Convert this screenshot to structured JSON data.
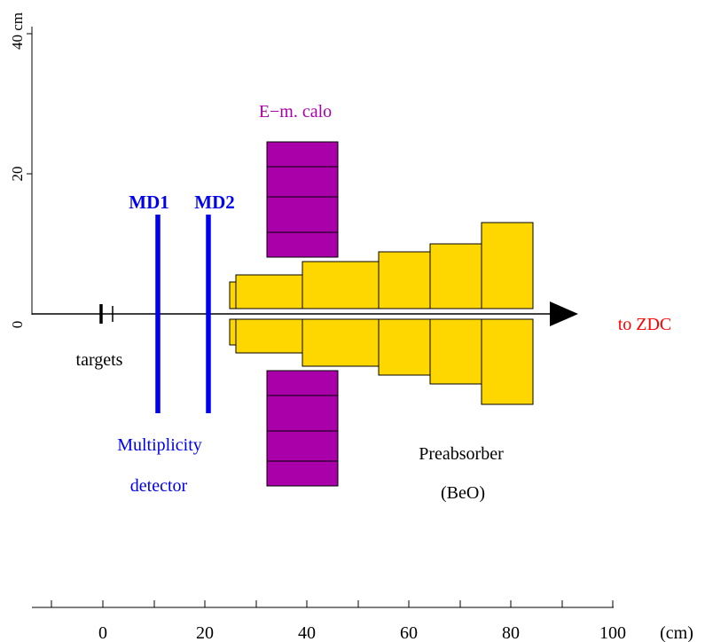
{
  "y_axis": {
    "unit_label": "40 cm",
    "tick_labels": [
      "20",
      "0"
    ]
  },
  "x_axis": {
    "tick_labels": [
      "0",
      "20",
      "40",
      "60",
      "80",
      "100"
    ],
    "unit_label": "(cm)"
  },
  "labels": {
    "targets": "targets",
    "md1": "MD1",
    "md2": "MD2",
    "multiplicity_line1": "Multiplicity",
    "multiplicity_line2": "detector",
    "em_calo": "E−m. calo",
    "preabsorber_line1": "Preabsorber",
    "preabsorber_line2": "(BeO)",
    "to_zdc": "to ZDC"
  },
  "colors": {
    "detector_blue": "#0000ee",
    "calo_purple": "#aa00aa",
    "preabsorber_yellow": "#ffd700",
    "zdc_red": "#ff0000",
    "line_black": "#000000"
  }
}
